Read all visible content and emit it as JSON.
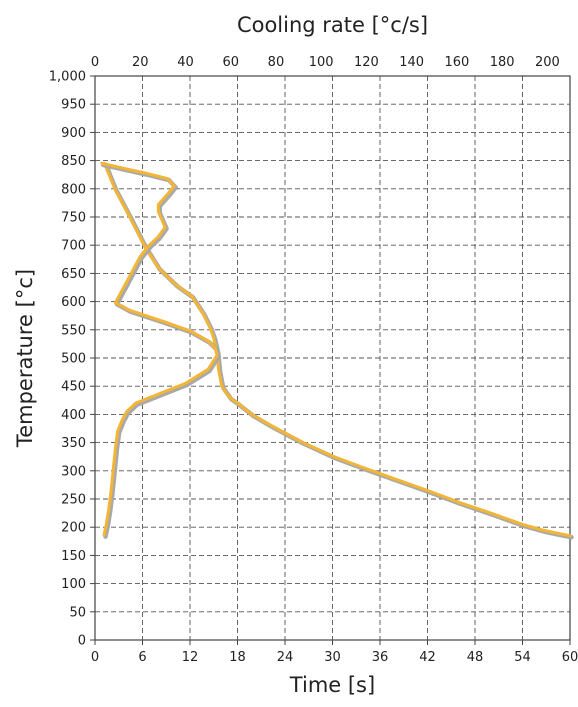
{
  "chart_data": {
    "type": "line",
    "xlabel": "Time [s]",
    "x2label": "Cooling rate [°c/s]",
    "ylabel": "Temperature [°c]",
    "xlim": [
      0,
      60
    ],
    "x2lim": [
      0,
      210
    ],
    "ylim": [
      0,
      1000
    ],
    "xticks": [
      0,
      6,
      12,
      18,
      24,
      30,
      36,
      42,
      48,
      54,
      60
    ],
    "x2ticks": [
      0,
      20,
      40,
      60,
      80,
      100,
      120,
      140,
      160,
      180,
      200
    ],
    "yticks": [
      0,
      50,
      100,
      150,
      200,
      250,
      300,
      350,
      400,
      450,
      500,
      550,
      600,
      650,
      700,
      750,
      800,
      850,
      900,
      950,
      1000
    ],
    "ytick_labels": [
      "0",
      "50",
      "100",
      "150",
      "200",
      "250",
      "300",
      "350",
      "400",
      "450",
      "500",
      "550",
      "600",
      "650",
      "700",
      "750",
      "800",
      "850",
      "900",
      "950",
      "1,000"
    ],
    "grid": true,
    "line_color": "#f2b535",
    "shadow_color": "#a9a9a9",
    "series": [
      {
        "axis": "time",
        "x": [
          1.2,
          2.5,
          4.4,
          6.2,
          8.0,
          10.2,
          12.2,
          13.6,
          14.5,
          15.0,
          15.4,
          15.6,
          16.0,
          17.0,
          18.0,
          19.8,
          22.0,
          26.0,
          30.0,
          34.0,
          38.0,
          42.0,
          46.0,
          50.0,
          54.0,
          56.5,
          58.5,
          60.0
        ],
        "y": [
          845,
          800,
          750,
          700,
          660,
          630,
          610,
          580,
          555,
          535,
          510,
          480,
          450,
          430,
          420,
          400,
          382,
          352,
          326,
          305,
          285,
          265,
          244,
          225,
          205,
          195,
          189,
          185
        ]
      },
      {
        "axis": "cooling_rate",
        "x": [
          3,
          22,
          32,
          35,
          32,
          28,
          28,
          31,
          28,
          24,
          20,
          16,
          12,
          9,
          15,
          30,
          42,
          50,
          53,
          54,
          50,
          40,
          28,
          18,
          14,
          12,
          10,
          9,
          8,
          7,
          6,
          5,
          4
        ],
        "y": [
          845,
          828,
          818,
          805,
          790,
          772,
          760,
          732,
          715,
          700,
          680,
          650,
          620,
          598,
          585,
          565,
          548,
          530,
          518,
          505,
          480,
          455,
          436,
          420,
          405,
          390,
          370,
          340,
          300,
          260,
          230,
          205,
          186
        ]
      }
    ]
  }
}
